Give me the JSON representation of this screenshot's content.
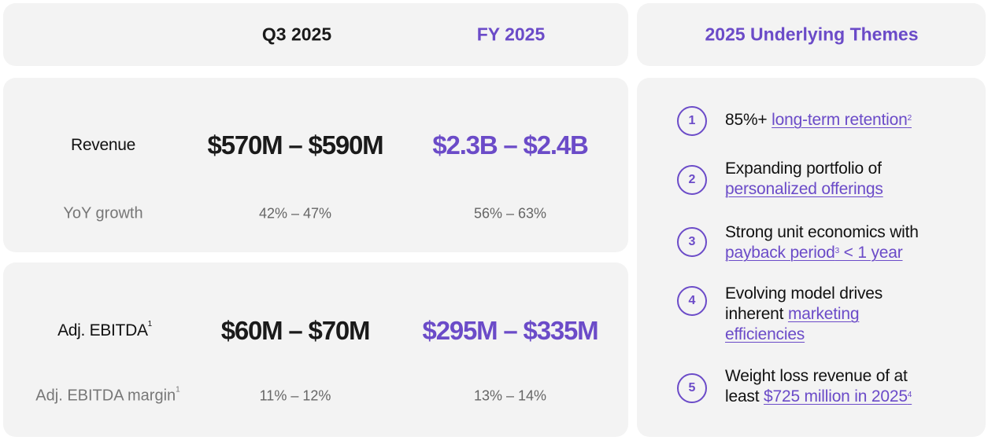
{
  "header": {
    "q3_label": "Q3 2025",
    "fy_label": "FY 2025",
    "themes_title": "2025 Underlying Themes"
  },
  "revenue": {
    "label": "Revenue",
    "q3": "$570M – $590M",
    "fy": "$2.3B – $2.4B",
    "growth_label": "YoY growth",
    "growth_q3": "42% – 47%",
    "growth_fy": "56% – 63%"
  },
  "ebitda": {
    "label": "Adj. EBITDA",
    "label_sup": "1",
    "q3": "$60M – $70M",
    "fy": "$295M – $335M",
    "margin_label": "Adj. EBITDA margin",
    "margin_sup": "1",
    "margin_q3": "11% – 12%",
    "margin_fy": "13% – 14%"
  },
  "themes": [
    {
      "num": "1",
      "pre": "85%+ ",
      "link": "long-term retention",
      "sup": "2"
    },
    {
      "num": "2",
      "line1": "Expanding portfolio of",
      "link": "personalized offerings"
    },
    {
      "num": "3",
      "line1": "Strong unit economics with",
      "link": "payback period",
      "sup": "3",
      "link_tail": " < 1 year"
    },
    {
      "num": "4",
      "line1": "Evolving model drives",
      "line2_pre": "inherent ",
      "link": "marketing",
      "link2": "efficiencies"
    },
    {
      "num": "5",
      "line1": "Weight loss revenue of at",
      "line2_pre": "least ",
      "link": "$725 million in 2025",
      "sup": "4"
    }
  ],
  "colors": {
    "accent": "#6b4bc8",
    "card_bg": "#f3f3f3"
  }
}
